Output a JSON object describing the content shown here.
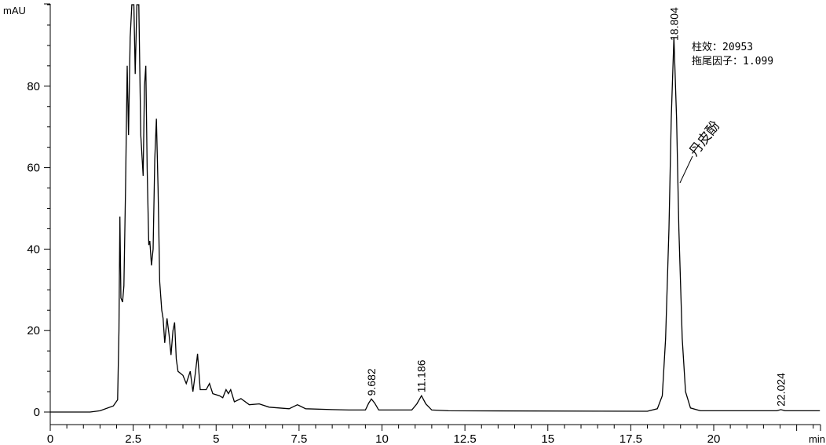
{
  "chart_data": {
    "type": "line",
    "title": "",
    "xlabel": "min",
    "ylabel": "mAU",
    "xlim": [
      0,
      23.2
    ],
    "ylim": [
      0,
      100
    ],
    "grid": false,
    "x_ticks": [
      0,
      2.5,
      5,
      7.5,
      10,
      12.5,
      15,
      17.5,
      20
    ],
    "x_tick_labels": [
      "0",
      "2.5",
      "5",
      "7.5",
      "10",
      "12.5",
      "15",
      "17.5",
      "20"
    ],
    "y_ticks": [
      0,
      20,
      40,
      60,
      80
    ],
    "y_tick_labels": [
      "0",
      "20",
      "40",
      "60",
      "80"
    ],
    "line_color": "#000000",
    "series": [
      {
        "points": [
          [
            0,
            0
          ],
          [
            1.2,
            0
          ],
          [
            1.5,
            0.3
          ],
          [
            1.9,
            1.5
          ],
          [
            2.03,
            3
          ],
          [
            2.07,
            20
          ],
          [
            2.1,
            48
          ],
          [
            2.13,
            28
          ],
          [
            2.18,
            27
          ],
          [
            2.22,
            31
          ],
          [
            2.27,
            55
          ],
          [
            2.32,
            85
          ],
          [
            2.36,
            68
          ],
          [
            2.41,
            92
          ],
          [
            2.46,
            100
          ],
          [
            2.52,
            100
          ],
          [
            2.56,
            83
          ],
          [
            2.61,
            100
          ],
          [
            2.67,
            100
          ],
          [
            2.73,
            68
          ],
          [
            2.8,
            58
          ],
          [
            2.84,
            80
          ],
          [
            2.88,
            85
          ],
          [
            2.92,
            60
          ],
          [
            2.97,
            41
          ],
          [
            3.0,
            42
          ],
          [
            3.05,
            36
          ],
          [
            3.1,
            40
          ],
          [
            3.15,
            62
          ],
          [
            3.2,
            72
          ],
          [
            3.25,
            55
          ],
          [
            3.3,
            32
          ],
          [
            3.36,
            25
          ],
          [
            3.4,
            23
          ],
          [
            3.45,
            17
          ],
          [
            3.52,
            23
          ],
          [
            3.58,
            19
          ],
          [
            3.64,
            14
          ],
          [
            3.7,
            20
          ],
          [
            3.75,
            22
          ],
          [
            3.8,
            13
          ],
          [
            3.85,
            10
          ],
          [
            4.0,
            9
          ],
          [
            4.1,
            7
          ],
          [
            4.22,
            10
          ],
          [
            4.3,
            5
          ],
          [
            4.38,
            10
          ],
          [
            4.44,
            14.3
          ],
          [
            4.52,
            5.5
          ],
          [
            4.7,
            5.5
          ],
          [
            4.8,
            7
          ],
          [
            4.9,
            4.5
          ],
          [
            5.1,
            4
          ],
          [
            5.2,
            3.5
          ],
          [
            5.3,
            5.5
          ],
          [
            5.37,
            4.5
          ],
          [
            5.44,
            5.5
          ],
          [
            5.55,
            2.5
          ],
          [
            5.75,
            3.3
          ],
          [
            6.0,
            1.8
          ],
          [
            6.3,
            2
          ],
          [
            6.6,
            1.2
          ],
          [
            6.9,
            1.0
          ],
          [
            7.2,
            0.8
          ],
          [
            7.45,
            1.8
          ],
          [
            7.7,
            0.8
          ],
          [
            8.5,
            0.6
          ],
          [
            9.0,
            0.5
          ],
          [
            9.5,
            0.5
          ],
          [
            9.6,
            2.2
          ],
          [
            9.68,
            3.2
          ],
          [
            9.78,
            2.2
          ],
          [
            9.9,
            0.5
          ],
          [
            10.9,
            0.5
          ],
          [
            11.05,
            2
          ],
          [
            11.19,
            4.0
          ],
          [
            11.32,
            2
          ],
          [
            11.5,
            0.5
          ],
          [
            12,
            0.3
          ],
          [
            18.0,
            0.2
          ],
          [
            18.3,
            0.8
          ],
          [
            18.45,
            4
          ],
          [
            18.55,
            18
          ],
          [
            18.65,
            45
          ],
          [
            18.72,
            72
          ],
          [
            18.8,
            92
          ],
          [
            18.88,
            72
          ],
          [
            18.95,
            45
          ],
          [
            19.05,
            18
          ],
          [
            19.15,
            5
          ],
          [
            19.3,
            1
          ],
          [
            19.6,
            0.3
          ],
          [
            21.9,
            0.3
          ],
          [
            22.024,
            0.6
          ],
          [
            22.15,
            0.3
          ],
          [
            23.2,
            0.3
          ]
        ]
      }
    ],
    "peak_labels": [
      {
        "rt": 9.682,
        "text": "9.682",
        "height": 3.2
      },
      {
        "rt": 11.186,
        "text": "11.186",
        "height": 4.0
      },
      {
        "rt": 18.804,
        "text": "18.804",
        "height": 92
      },
      {
        "rt": 22.024,
        "text": "22.024",
        "height": 0.6
      }
    ],
    "annotations": {
      "efficiency": "柱效：20953",
      "tailing": "拖尾因子：1.099",
      "compound": "丹皮酚"
    }
  }
}
